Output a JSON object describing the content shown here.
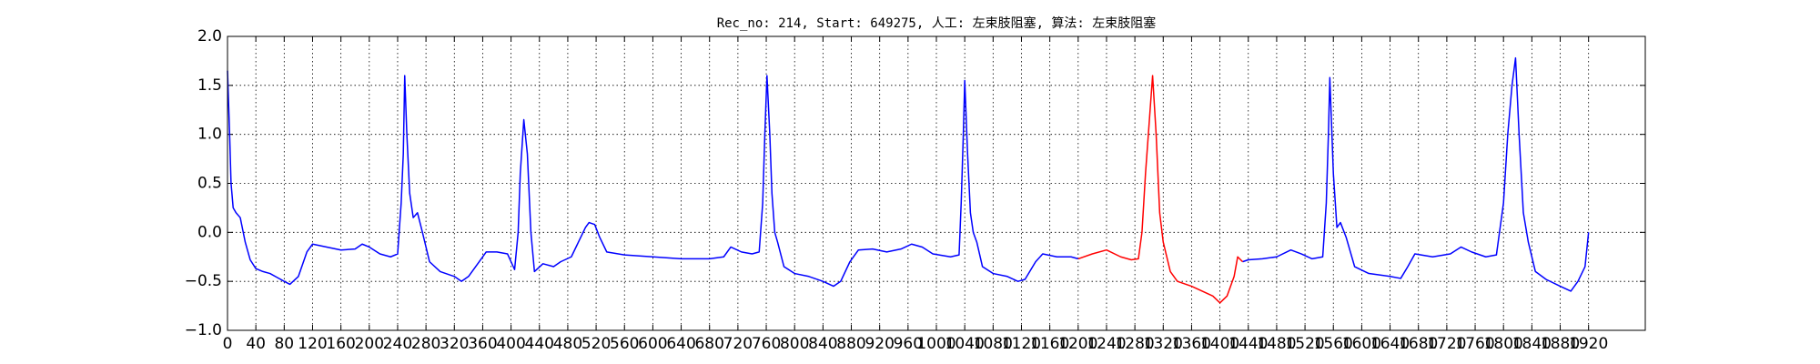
{
  "chart_data": {
    "type": "line",
    "title": "Rec_no: 214, Start: 649275, 人工: 左束肢阻塞, 算法: 左束肢阻塞",
    "x": [
      0,
      3,
      5,
      8,
      12,
      18,
      25,
      32,
      40,
      50,
      60,
      70,
      80,
      88,
      100,
      112,
      120,
      140,
      160,
      180,
      190,
      200,
      215,
      230,
      240,
      245,
      248,
      250,
      253,
      257,
      262,
      268,
      275,
      285,
      300,
      320,
      330,
      340,
      355,
      365,
      380,
      395,
      405,
      410,
      413,
      418,
      423,
      428,
      433,
      445,
      460,
      470,
      485,
      495,
      505,
      510,
      518,
      525,
      535,
      560,
      600,
      640,
      680,
      700,
      710,
      725,
      740,
      750,
      755,
      758,
      761,
      765,
      768,
      772,
      776,
      785,
      800,
      820,
      840,
      855,
      865,
      878,
      890,
      910,
      930,
      950,
      965,
      980,
      995,
      1020,
      1032,
      1035,
      1038,
      1040,
      1044,
      1048,
      1052,
      1057,
      1065,
      1080,
      1100,
      1115,
      1125,
      1140,
      1150,
      1170,
      1190,
      1200,
      1220,
      1240,
      1260,
      1275,
      1285,
      1290,
      1295,
      1300,
      1305,
      1310,
      1315,
      1320,
      1330,
      1340,
      1360,
      1375,
      1390,
      1400,
      1410,
      1420,
      1425,
      1432,
      1440,
      1460,
      1480,
      1500,
      1515,
      1530,
      1545,
      1550,
      1553,
      1555,
      1560,
      1565,
      1570,
      1578,
      1590,
      1610,
      1640,
      1655,
      1665,
      1675,
      1700,
      1725,
      1740,
      1755,
      1775,
      1790,
      1800,
      1806,
      1812,
      1817,
      1822,
      1828,
      1835,
      1845,
      1860,
      1880,
      1895,
      1905,
      1915,
      1920
    ],
    "series": [
      {
        "color": "#0000ff",
        "values": [
          1.65,
          1.0,
          0.5,
          0.25,
          0.2,
          0.15,
          -0.1,
          -0.28,
          -0.37,
          -0.4,
          -0.42,
          -0.46,
          -0.5,
          -0.53,
          -0.45,
          -0.2,
          -0.12,
          -0.15,
          -0.18,
          -0.17,
          -0.12,
          -0.15,
          -0.22,
          -0.25,
          -0.22,
          0.3,
          0.8,
          1.6,
          1.0,
          0.4,
          0.15,
          0.2,
          0,
          -0.3,
          -0.4,
          -0.45,
          -0.5,
          -0.45,
          -0.3,
          -0.2,
          -0.2,
          -0.22,
          -0.38,
          0,
          0.6,
          1.15,
          0.8,
          0,
          -0.4,
          -0.32,
          -0.35,
          -0.3,
          -0.25,
          -0.1,
          0.05,
          0.1,
          0.08,
          -0.05,
          -0.2,
          -0.23,
          -0.25,
          -0.27,
          -0.27,
          -0.25,
          -0.15,
          -0.2,
          -0.22,
          -0.2,
          0.3,
          1.0,
          1.6,
          1.0,
          0.4,
          0,
          -0.1,
          -0.35,
          -0.42,
          -0.45,
          -0.5,
          -0.55,
          -0.5,
          -0.3,
          -0.18,
          -0.17,
          -0.2,
          -0.17,
          -0.12,
          -0.15,
          -0.22,
          -0.25,
          -0.23,
          0.3,
          1.0,
          1.55,
          0.8,
          0.2,
          0,
          -0.1,
          -0.35,
          -0.42,
          -0.45,
          -0.5,
          -0.48,
          -0.3,
          -0.22,
          -0.25,
          -0.25,
          -0.27,
          null,
          null,
          null,
          null,
          null,
          null,
          null,
          null,
          null,
          null,
          null,
          null,
          null,
          null,
          null,
          null,
          null,
          null,
          null,
          null,
          null,
          -0.3,
          -0.28,
          -0.27,
          -0.25,
          -0.18,
          -0.22,
          -0.27,
          -0.25,
          0.3,
          1.0,
          1.58,
          0.6,
          0.05,
          0.1,
          -0.05,
          -0.35,
          -0.42,
          -0.45,
          -0.47,
          -0.35,
          -0.22,
          -0.25,
          -0.22,
          -0.15,
          -0.2,
          -0.25,
          -0.23,
          0.3,
          1.0,
          1.5,
          1.78,
          1.0,
          0.2,
          -0.1,
          -0.4,
          -0.48,
          -0.55,
          -0.6,
          -0.5,
          -0.35,
          0
        ]
      },
      {
        "color": "#ff0000",
        "values": [
          null,
          null,
          null,
          null,
          null,
          null,
          null,
          null,
          null,
          null,
          null,
          null,
          null,
          null,
          null,
          null,
          null,
          null,
          null,
          null,
          null,
          null,
          null,
          null,
          null,
          null,
          null,
          null,
          null,
          null,
          null,
          null,
          null,
          null,
          null,
          null,
          null,
          null,
          null,
          null,
          null,
          null,
          null,
          null,
          null,
          null,
          null,
          null,
          null,
          null,
          null,
          null,
          null,
          null,
          null,
          null,
          null,
          null,
          null,
          null,
          null,
          null,
          null,
          null,
          null,
          null,
          null,
          null,
          null,
          null,
          null,
          null,
          null,
          null,
          null,
          null,
          null,
          null,
          null,
          null,
          null,
          null,
          null,
          null,
          null,
          null,
          null,
          null,
          null,
          null,
          null,
          null,
          null,
          null,
          null,
          null,
          null,
          null,
          null,
          null,
          null,
          null,
          null,
          null,
          null,
          null,
          null,
          -0.27,
          -0.22,
          -0.18,
          -0.25,
          -0.28,
          -0.27,
          0,
          0.6,
          1.1,
          1.6,
          1.0,
          0.2,
          -0.1,
          -0.4,
          -0.5,
          -0.55,
          -0.6,
          -0.65,
          -0.72,
          -0.65,
          -0.45,
          -0.25,
          -0.3,
          null,
          null,
          null,
          null,
          null,
          null,
          null,
          null,
          null,
          null,
          null,
          null,
          null,
          null,
          null,
          null,
          null,
          null,
          null,
          null,
          null,
          null,
          null,
          null,
          null,
          null,
          null,
          null,
          null,
          null,
          null,
          null,
          null,
          null,
          null,
          null,
          null,
          null,
          null,
          null
        ]
      }
    ],
    "xlim": [
      0,
      2000
    ],
    "xticks": [
      0,
      40,
      80,
      120,
      160,
      200,
      240,
      280,
      320,
      360,
      400,
      440,
      480,
      520,
      560,
      600,
      640,
      680,
      720,
      760,
      800,
      840,
      880,
      920,
      960,
      1000,
      1040,
      1080,
      1120,
      1160,
      1200,
      1240,
      1280,
      1320,
      1360,
      1400,
      1440,
      1480,
      1520,
      1560,
      1600,
      1640,
      1680,
      1720,
      1760,
      1800,
      1840,
      1880,
      1920
    ],
    "ylim": [
      -1,
      2
    ],
    "yticks": [
      {
        "value": -1,
        "label": "−1.0"
      },
      {
        "value": -0.5,
        "label": "−0.5"
      },
      {
        "value": 0,
        "label": "0.0"
      },
      {
        "value": 0.5,
        "label": "0.5"
      },
      {
        "value": 1,
        "label": "1.0"
      },
      {
        "value": 1.5,
        "label": "1.5"
      },
      {
        "value": 2,
        "label": "2.0"
      }
    ],
    "grid": true
  }
}
